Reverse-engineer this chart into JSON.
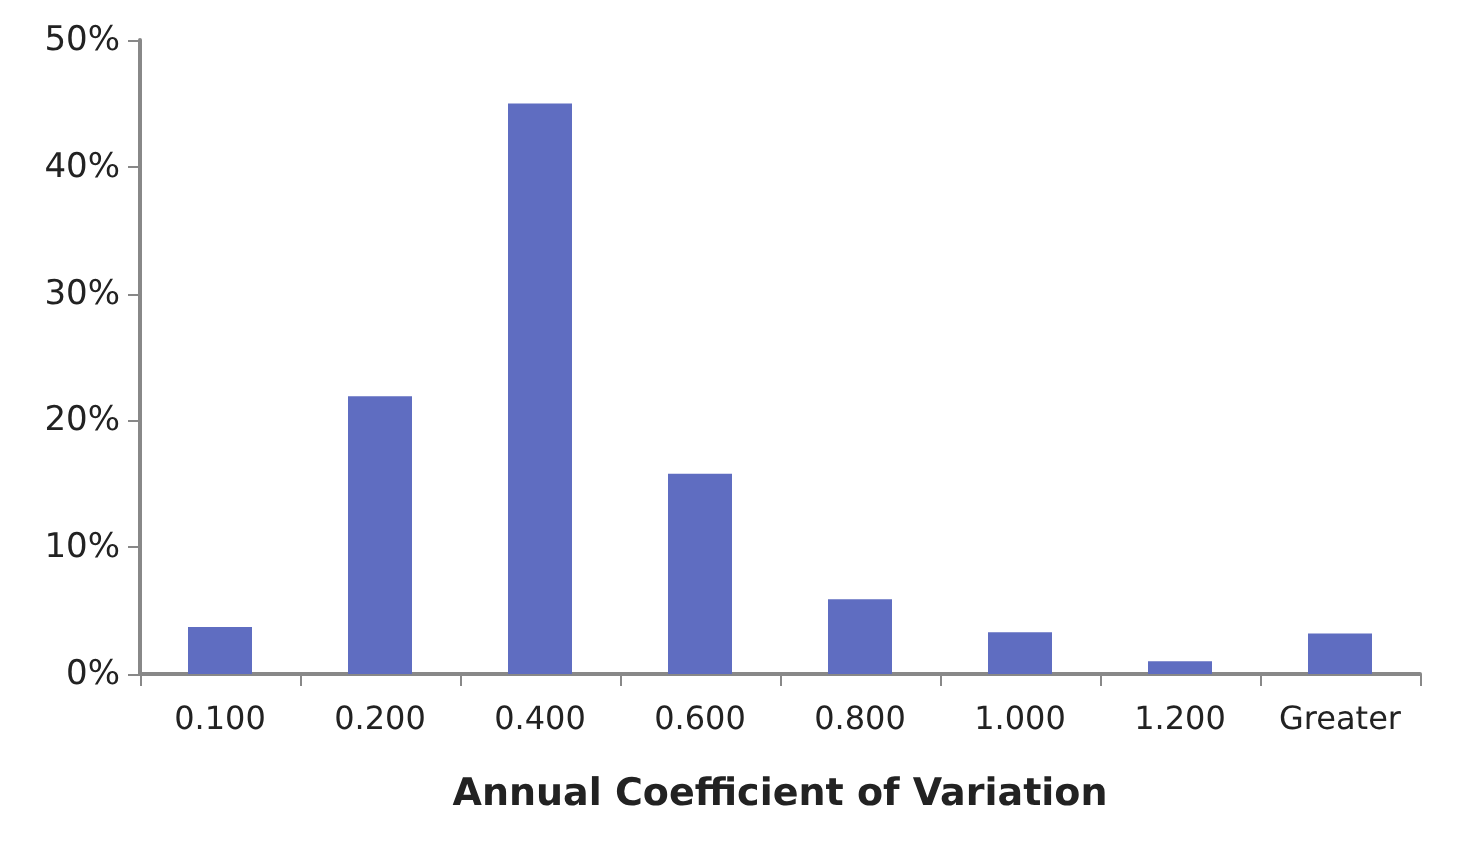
{
  "chart_data": {
    "type": "bar",
    "xlabel": "Annual Coefficient of Variation",
    "categories": [
      "0.100",
      "0.200",
      "0.400",
      "0.600",
      "0.800",
      "1.000",
      "1.200",
      "Greater"
    ],
    "values": [
      3.7,
      21.9,
      45.0,
      15.8,
      5.9,
      3.3,
      1.0,
      3.2
    ],
    "color": "#5f6dc1",
    "ylim": [
      0,
      50
    ],
    "yticks": [
      {
        "value": 0,
        "label": "0%"
      },
      {
        "value": 10,
        "label": "10%"
      },
      {
        "value": 20,
        "label": "20%"
      },
      {
        "value": 30,
        "label": "30%"
      },
      {
        "value": 40,
        "label": "40%"
      },
      {
        "value": 50,
        "label": "50%"
      }
    ],
    "grid": false
  }
}
